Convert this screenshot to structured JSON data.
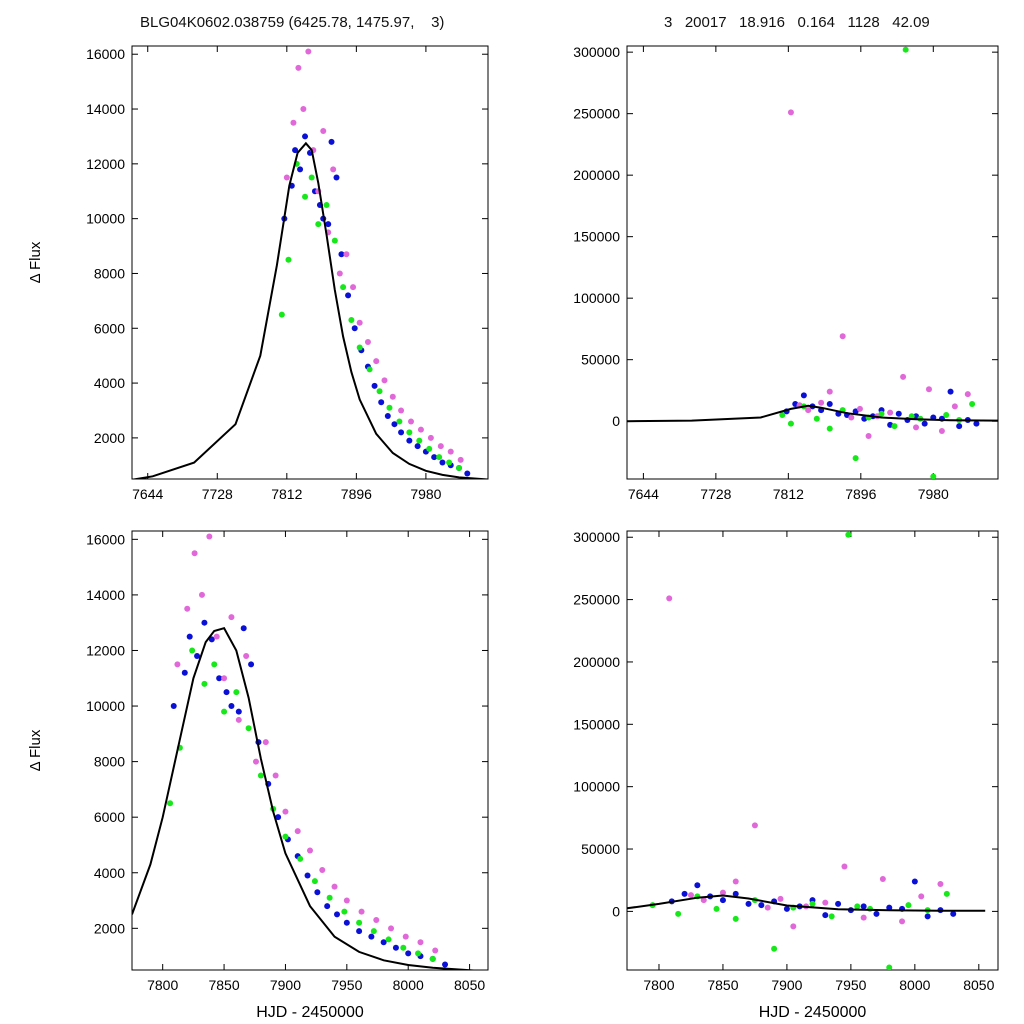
{
  "header": {
    "left": "BLG04K0602.038759 (6425.78, 1475.97,    3)",
    "right": "3   20017   18.916   0.164   1128   42.09"
  },
  "colors": {
    "blue": "#0a10d6",
    "magenta": "#e068d8",
    "green": "#16e81a",
    "model": "#000000"
  },
  "chart_data": [
    {
      "type": "scatter",
      "title": "",
      "xlabel": "",
      "ylabel": "Δ Flux",
      "xlim": [
        7625,
        8055
      ],
      "ylim": [
        500,
        16300
      ],
      "xticks": [
        7644,
        7728,
        7812,
        7896,
        7980
      ],
      "yticks": [
        2000,
        4000,
        6000,
        8000,
        10000,
        12000,
        14000,
        16000
      ],
      "series": [
        {
          "color": "blue",
          "x": [
            7809,
            7818,
            7822,
            7828,
            7834,
            7840,
            7846,
            7852,
            7856,
            7862,
            7866,
            7872,
            7878,
            7886,
            7894,
            7902,
            7910,
            7918,
            7926,
            7934,
            7942,
            7950,
            7960,
            7970,
            7980,
            7990,
            8000,
            8010,
            8020,
            8030
          ],
          "y": [
            10000,
            11200,
            12500,
            11800,
            13000,
            12400,
            11000,
            10500,
            10000,
            9800,
            12800,
            11500,
            8700,
            7200,
            6000,
            5200,
            4600,
            3900,
            3300,
            2800,
            2500,
            2200,
            1900,
            1700,
            1500,
            1300,
            1100,
            1000,
            900,
            700
          ]
        },
        {
          "color": "magenta",
          "x": [
            7812,
            7820,
            7826,
            7832,
            7838,
            7844,
            7850,
            7856,
            7862,
            7868,
            7876,
            7884,
            7892,
            7900,
            7910,
            7920,
            7930,
            7940,
            7950,
            7962,
            7974,
            7986,
            7998,
            8010,
            8022
          ],
          "y": [
            11500,
            13500,
            15500,
            14000,
            16100,
            12500,
            11000,
            13200,
            9500,
            11800,
            8000,
            8700,
            7500,
            6200,
            5500,
            4800,
            4100,
            3500,
            3000,
            2600,
            2300,
            2000,
            1700,
            1500,
            1200
          ]
        },
        {
          "color": "green",
          "x": [
            7806,
            7814,
            7824,
            7834,
            7842,
            7850,
            7860,
            7870,
            7880,
            7890,
            7900,
            7912,
            7924,
            7936,
            7948,
            7960,
            7972,
            7984,
            7996,
            8008,
            8020
          ],
          "y": [
            6500,
            8500,
            12000,
            10800,
            11500,
            9800,
            10500,
            9200,
            7500,
            6300,
            5300,
            4500,
            3700,
            3100,
            2600,
            2200,
            1900,
            1600,
            1300,
            1100,
            900
          ]
        },
        {
          "name": "model",
          "color": "model",
          "line": true,
          "x": [
            7625,
            7650,
            7700,
            7750,
            7780,
            7800,
            7815,
            7825,
            7835,
            7842,
            7850,
            7860,
            7870,
            7880,
            7890,
            7900,
            7920,
            7940,
            7960,
            7980,
            8000,
            8020,
            8055
          ],
          "y": [
            470,
            600,
            1100,
            2500,
            5000,
            8300,
            11200,
            12400,
            12750,
            12500,
            11300,
            9400,
            7400,
            5700,
            4400,
            3400,
            2150,
            1450,
            1050,
            800,
            650,
            560,
            480
          ]
        }
      ]
    },
    {
      "type": "scatter",
      "title": "",
      "xlabel": "",
      "ylabel": "",
      "xlim": [
        7625,
        8055
      ],
      "ylim": [
        -47000,
        305000
      ],
      "xticks": [
        7644,
        7728,
        7812,
        7896,
        7980
      ],
      "yticks": [
        0,
        50000,
        100000,
        150000,
        200000,
        250000,
        300000
      ],
      "series": [
        {
          "color": "blue",
          "x": [
            7810,
            7820,
            7830,
            7840,
            7850,
            7860,
            7870,
            7880,
            7890,
            7900,
            7910,
            7920,
            7930,
            7940,
            7950,
            7960,
            7970,
            7980,
            7990,
            8000,
            8010,
            8020,
            8030
          ],
          "y": [
            8000,
            14000,
            21000,
            12000,
            9000,
            14000,
            6000,
            5000,
            8000,
            2000,
            4000,
            9000,
            -3000,
            6000,
            1000,
            4000,
            -2000,
            3000,
            2000,
            24000,
            -4000,
            1000,
            -2000
          ]
        },
        {
          "color": "magenta",
          "x": [
            7815,
            7825,
            7835,
            7850,
            7860,
            7875,
            7885,
            7895,
            7905,
            7915,
            7930,
            7945,
            7960,
            7975,
            7990,
            8005,
            8020
          ],
          "y": [
            251000,
            13000,
            9000,
            15000,
            24000,
            69000,
            3000,
            10000,
            -12000,
            4000,
            7000,
            36000,
            -5000,
            26000,
            -8000,
            12000,
            22000
          ]
        },
        {
          "color": "green",
          "x": [
            7805,
            7815,
            7830,
            7845,
            7860,
            7875,
            7890,
            7905,
            7920,
            7935,
            7948,
            7955,
            7965,
            7980,
            7995,
            8010,
            8025
          ],
          "y": [
            5000,
            -2000,
            12000,
            2000,
            -6000,
            9000,
            -30000,
            3000,
            6000,
            -4000,
            302000,
            4000,
            2000,
            -45000,
            5000,
            1000,
            14000
          ]
        },
        {
          "name": "model",
          "color": "model",
          "line": true,
          "x": [
            7625,
            7700,
            7780,
            7815,
            7835,
            7850,
            7880,
            7920,
            7960,
            8000,
            8055
          ],
          "y": [
            0,
            500,
            3000,
            10000,
            12500,
            11000,
            6500,
            3000,
            1500,
            800,
            500
          ]
        }
      ]
    },
    {
      "type": "scatter",
      "title": "",
      "xlabel": "HJD - 2450000",
      "ylabel": "Δ Flux",
      "xlim": [
        7775,
        8065
      ],
      "ylim": [
        500,
        16300
      ],
      "xticks": [
        7800,
        7850,
        7900,
        7950,
        8000,
        8050
      ],
      "yticks": [
        2000,
        4000,
        6000,
        8000,
        10000,
        12000,
        14000,
        16000
      ],
      "series": [
        {
          "color": "blue",
          "x": [
            7809,
            7818,
            7822,
            7828,
            7834,
            7840,
            7846,
            7852,
            7856,
            7862,
            7866,
            7872,
            7878,
            7886,
            7894,
            7902,
            7910,
            7918,
            7926,
            7934,
            7942,
            7950,
            7960,
            7970,
            7980,
            7990,
            8000,
            8010,
            8020,
            8030
          ],
          "y": [
            10000,
            11200,
            12500,
            11800,
            13000,
            12400,
            11000,
            10500,
            10000,
            9800,
            12800,
            11500,
            8700,
            7200,
            6000,
            5200,
            4600,
            3900,
            3300,
            2800,
            2500,
            2200,
            1900,
            1700,
            1500,
            1300,
            1100,
            1000,
            900,
            700
          ]
        },
        {
          "color": "magenta",
          "x": [
            7812,
            7820,
            7826,
            7832,
            7838,
            7844,
            7850,
            7856,
            7862,
            7868,
            7876,
            7884,
            7892,
            7900,
            7910,
            7920,
            7930,
            7940,
            7950,
            7962,
            7974,
            7986,
            7998,
            8010,
            8022
          ],
          "y": [
            11500,
            13500,
            15500,
            14000,
            16100,
            12500,
            11000,
            13200,
            9500,
            11800,
            8000,
            8700,
            7500,
            6200,
            5500,
            4800,
            4100,
            3500,
            3000,
            2600,
            2300,
            2000,
            1700,
            1500,
            1200
          ]
        },
        {
          "color": "green",
          "x": [
            7806,
            7814,
            7824,
            7834,
            7842,
            7850,
            7860,
            7870,
            7880,
            7890,
            7900,
            7912,
            7924,
            7936,
            7948,
            7960,
            7972,
            7984,
            7996,
            8008,
            8020
          ],
          "y": [
            6500,
            8500,
            12000,
            10800,
            11500,
            9800,
            10500,
            9200,
            7500,
            6300,
            5300,
            4500,
            3700,
            3100,
            2600,
            2200,
            1900,
            1600,
            1300,
            1100,
            900
          ]
        },
        {
          "name": "model",
          "color": "model",
          "line": true,
          "x": [
            7775,
            7790,
            7800,
            7815,
            7825,
            7835,
            7842,
            7850,
            7860,
            7870,
            7880,
            7890,
            7900,
            7920,
            7940,
            7960,
            7980,
            8000,
            8020,
            8055
          ],
          "y": [
            2500,
            4300,
            6000,
            9000,
            11000,
            12300,
            12700,
            12800,
            12000,
            10300,
            8100,
            6200,
            4700,
            2800,
            1700,
            1150,
            850,
            680,
            580,
            480
          ]
        }
      ]
    },
    {
      "type": "scatter",
      "title": "",
      "xlabel": "HJD - 2450000",
      "ylabel": "",
      "xlim": [
        7775,
        8065
      ],
      "ylim": [
        -47000,
        305000
      ],
      "xticks": [
        7800,
        7850,
        7900,
        7950,
        8000,
        8050
      ],
      "yticks": [
        0,
        50000,
        100000,
        150000,
        200000,
        250000,
        300000
      ],
      "series": [
        {
          "color": "blue",
          "x": [
            7810,
            7820,
            7830,
            7840,
            7850,
            7860,
            7870,
            7880,
            7890,
            7900,
            7910,
            7920,
            7930,
            7940,
            7950,
            7960,
            7970,
            7980,
            7990,
            8000,
            8010,
            8020,
            8030
          ],
          "y": [
            8000,
            14000,
            21000,
            12000,
            9000,
            14000,
            6000,
            5000,
            8000,
            2000,
            4000,
            9000,
            -3000,
            6000,
            1000,
            4000,
            -2000,
            3000,
            2000,
            24000,
            -4000,
            1000,
            -2000
          ]
        },
        {
          "color": "magenta",
          "x": [
            7808,
            7825,
            7835,
            7850,
            7860,
            7875,
            7885,
            7895,
            7905,
            7915,
            7930,
            7945,
            7960,
            7975,
            7990,
            8005,
            8020
          ],
          "y": [
            251000,
            13000,
            9000,
            15000,
            24000,
            69000,
            3000,
            10000,
            -12000,
            4000,
            7000,
            36000,
            -5000,
            26000,
            -8000,
            12000,
            22000
          ]
        },
        {
          "color": "green",
          "x": [
            7795,
            7815,
            7830,
            7845,
            7860,
            7875,
            7890,
            7905,
            7920,
            7935,
            7948,
            7955,
            7965,
            7980,
            7995,
            8010,
            8025
          ],
          "y": [
            5000,
            -2000,
            12000,
            2000,
            -6000,
            9000,
            -30000,
            3000,
            6000,
            -4000,
            302000,
            4000,
            2000,
            -45000,
            5000,
            1000,
            14000
          ]
        },
        {
          "name": "model",
          "color": "model",
          "line": true,
          "x": [
            7775,
            7800,
            7830,
            7850,
            7870,
            7900,
            7940,
            7980,
            8020,
            8055
          ],
          "y": [
            2500,
            6000,
            11000,
            12700,
            10300,
            4700,
            1700,
            850,
            580,
            480
          ]
        }
      ]
    }
  ]
}
